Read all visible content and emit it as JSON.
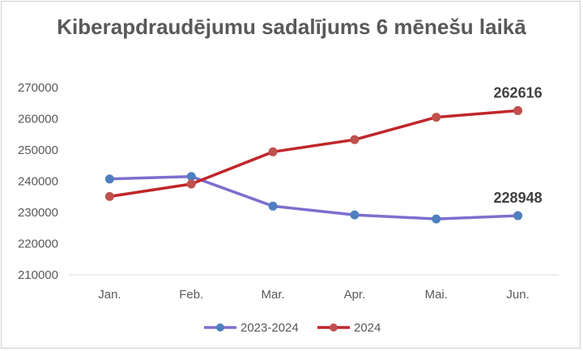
{
  "chart_data": {
    "type": "line",
    "title": "Kiberapdraudējumu sadalījums 6 mēnešu laikā",
    "categories": [
      "Jan.",
      "Feb.",
      "Mar.",
      "Apr.",
      "Mai.",
      "Jun."
    ],
    "ylim": [
      210000,
      270000
    ],
    "yticks": [
      "270000",
      "260000",
      "250000",
      "240000",
      "230000",
      "220000",
      "210000"
    ],
    "grid": false,
    "legend": "bottom",
    "series": [
      {
        "name": "2023-2024",
        "values": [
          240700,
          241500,
          232000,
          229200,
          227900,
          228948
        ],
        "color": "#7b6fcf",
        "marker_color": "#4f7fc0",
        "end_label": "228948"
      },
      {
        "name": "2024",
        "values": [
          235100,
          239100,
          249400,
          253300,
          260500,
          262616
        ],
        "color": "#c0262b",
        "marker_color": "#c0504d",
        "end_label": "262616"
      }
    ]
  }
}
